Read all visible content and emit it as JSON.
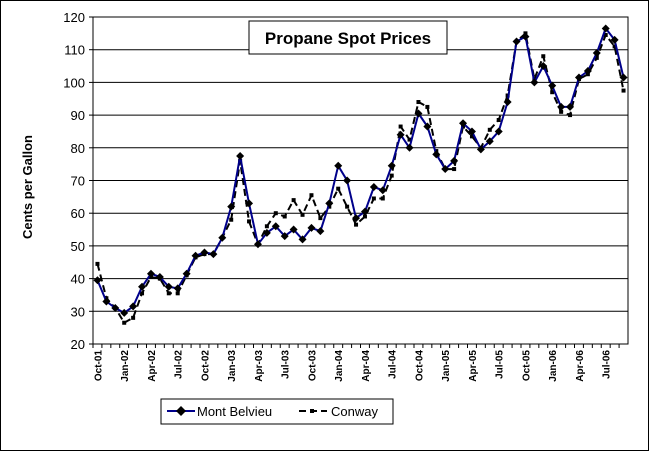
{
  "chart_data": {
    "type": "line",
    "title": "Propane Spot Prices",
    "xlabel": "",
    "ylabel": "Cents per Gallon",
    "ylim": [
      20,
      120
    ],
    "yticks": [
      "20",
      "30",
      "40",
      "50",
      "60",
      "70",
      "80",
      "90",
      "100",
      "110",
      "120"
    ],
    "grid": "horizontal",
    "legend_position": "bottom",
    "x": [
      "Oct-01",
      "Nov-01",
      "Dec-01",
      "Jan-02",
      "Feb-02",
      "Mar-02",
      "Apr-02",
      "May-02",
      "Jun-02",
      "Jul-02",
      "Aug-02",
      "Sep-02",
      "Oct-02",
      "Nov-02",
      "Dec-02",
      "Jan-03",
      "Feb-03",
      "Mar-03",
      "Apr-03",
      "May-03",
      "Jun-03",
      "Jul-03",
      "Aug-03",
      "Sep-03",
      "Oct-03",
      "Nov-03",
      "Dec-03",
      "Jan-04",
      "Feb-04",
      "Mar-04",
      "Apr-04",
      "May-04",
      "Jun-04",
      "Jul-04",
      "Aug-04",
      "Sep-04",
      "Oct-04",
      "Nov-04",
      "Dec-04",
      "Jan-05",
      "Feb-05",
      "Mar-05",
      "Apr-05",
      "May-05",
      "Jun-05",
      "Jul-05",
      "Aug-05",
      "Sep-05",
      "Oct-05",
      "Nov-05",
      "Dec-05",
      "Jan-06",
      "Feb-06",
      "Mar-06",
      "Apr-06",
      "May-06",
      "Jun-06",
      "Jul-06",
      "Aug-06",
      "Sep-06"
    ],
    "x_tick_labels": [
      "Oct-01",
      "Jan-02",
      "Apr-02",
      "Jul-02",
      "Oct-02",
      "Jan-03",
      "Apr-03",
      "Jul-03",
      "Oct-03",
      "Jan-04",
      "Apr-04",
      "Jul-04",
      "Oct-04",
      "Jan-05",
      "Apr-05",
      "Jul-05",
      "Oct-05",
      "Jan-06",
      "Apr-06",
      "Jul-06"
    ],
    "series": [
      {
        "name": "Mont Belvieu",
        "color": "#00008b",
        "marker": "diamond",
        "style": "solid",
        "values": [
          39.5,
          33,
          31,
          29.5,
          31.5,
          37.5,
          41.5,
          40.5,
          37.5,
          37,
          41.5,
          47,
          48,
          47.5,
          52.5,
          62,
          77.5,
          63,
          50.5,
          54,
          56,
          53,
          55,
          52,
          55.5,
          54.5,
          63,
          74.5,
          70,
          58.5,
          60.5,
          68,
          67,
          74.5,
          84,
          80,
          90.5,
          86.5,
          78,
          73.5,
          76,
          87.5,
          85,
          79.5,
          82,
          85,
          94,
          112.5,
          114,
          100,
          105,
          99,
          92.5,
          92.5,
          101.5,
          103.5,
          109,
          116.5,
          113,
          101.5
        ]
      },
      {
        "name": "Conway",
        "color": "#000000",
        "marker": "square",
        "style": "dashed",
        "values": [
          44.5,
          34,
          31,
          26.5,
          28,
          35.5,
          40.5,
          40,
          35.5,
          35.5,
          41,
          46.5,
          47.5,
          47.5,
          52.5,
          58,
          76,
          57.5,
          50.5,
          56,
          60,
          59,
          64,
          59.5,
          65.5,
          58.5,
          62,
          67.5,
          62,
          56.5,
          59,
          64.5,
          64.5,
          71.5,
          86.5,
          82.5,
          94,
          92.5,
          79,
          73.5,
          73.5,
          86.5,
          83.5,
          80,
          85.5,
          88.5,
          96,
          112.5,
          115,
          101,
          108,
          97,
          91,
          90,
          101,
          102.5,
          107.5,
          114.5,
          111,
          97.5
        ]
      }
    ]
  }
}
